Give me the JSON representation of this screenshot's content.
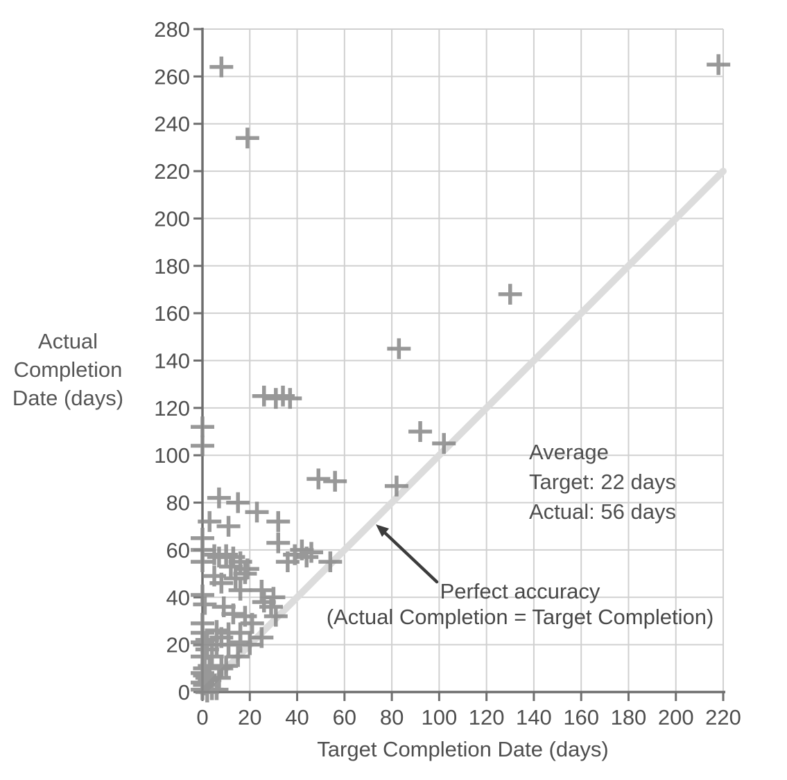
{
  "chart_data": {
    "type": "scatter",
    "title": "",
    "xlabel": "Target Completion Date (days)",
    "ylabel_lines": [
      "Actual",
      "Completion",
      "Date (days)"
    ],
    "xlim": [
      0,
      220
    ],
    "ylim": [
      0,
      280
    ],
    "xticks": [
      0,
      20,
      40,
      60,
      80,
      100,
      120,
      140,
      160,
      180,
      200,
      220
    ],
    "yticks": [
      0,
      20,
      40,
      60,
      80,
      100,
      120,
      140,
      160,
      180,
      200,
      220,
      240,
      260,
      280
    ],
    "grid": true,
    "marker": "plus",
    "legend": "none",
    "points": [
      [
        8,
        264
      ],
      [
        19,
        234
      ],
      [
        218,
        265
      ],
      [
        130,
        168
      ],
      [
        83,
        145
      ],
      [
        26,
        125
      ],
      [
        31,
        124
      ],
      [
        34,
        125
      ],
      [
        37,
        124
      ],
      [
        0,
        112
      ],
      [
        0,
        104
      ],
      [
        92,
        110
      ],
      [
        102,
        105
      ],
      [
        49,
        90
      ],
      [
        56,
        89
      ],
      [
        82,
        87
      ],
      [
        7,
        82
      ],
      [
        15,
        80
      ],
      [
        23,
        76
      ],
      [
        3,
        72
      ],
      [
        32,
        72
      ],
      [
        11,
        70
      ],
      [
        0,
        65
      ],
      [
        32,
        63
      ],
      [
        0,
        60
      ],
      [
        0,
        55
      ],
      [
        5,
        58
      ],
      [
        7,
        57
      ],
      [
        10,
        58
      ],
      [
        13,
        57
      ],
      [
        12,
        53
      ],
      [
        16,
        55
      ],
      [
        19,
        52
      ],
      [
        5,
        49
      ],
      [
        8,
        46
      ],
      [
        14,
        48
      ],
      [
        18,
        50
      ],
      [
        36,
        55
      ],
      [
        39,
        58
      ],
      [
        42,
        60
      ],
      [
        44,
        57
      ],
      [
        46,
        59
      ],
      [
        54,
        55
      ],
      [
        16,
        43
      ],
      [
        25,
        43
      ],
      [
        0,
        41
      ],
      [
        1,
        37
      ],
      [
        9,
        36
      ],
      [
        13,
        33
      ],
      [
        18,
        32
      ],
      [
        21,
        29
      ],
      [
        26,
        38
      ],
      [
        29,
        36
      ],
      [
        30,
        40
      ],
      [
        31,
        32
      ],
      [
        0,
        29
      ],
      [
        0,
        25
      ],
      [
        0,
        21
      ],
      [
        6,
        26
      ],
      [
        11,
        25
      ],
      [
        16,
        25
      ],
      [
        25,
        23
      ],
      [
        2,
        22
      ],
      [
        8,
        23
      ],
      [
        16,
        21
      ],
      [
        1,
        20
      ],
      [
        6,
        20
      ],
      [
        11,
        20
      ],
      [
        20,
        20
      ],
      [
        0,
        15
      ],
      [
        2,
        18
      ],
      [
        4,
        15
      ],
      [
        15,
        15
      ],
      [
        3,
        11
      ],
      [
        8,
        10
      ],
      [
        10,
        11
      ],
      [
        0,
        8
      ],
      [
        1,
        7
      ],
      [
        7,
        6
      ],
      [
        3,
        5
      ],
      [
        0,
        4
      ],
      [
        1,
        3
      ],
      [
        2,
        6
      ],
      [
        4,
        1
      ],
      [
        0,
        1
      ],
      [
        2,
        0
      ],
      [
        1,
        10
      ],
      [
        6,
        1
      ]
    ],
    "reference_line": {
      "from": [
        0,
        0
      ],
      "to": [
        220,
        220
      ],
      "label": "Perfect accuracy",
      "label2": "(Actual Completion = Target Completion)"
    },
    "annotation": {
      "lines": [
        "Average",
        "Target: 22 days",
        "Actual: 56 days"
      ]
    },
    "colors": {
      "marker": "#8a8a8a",
      "grid": "#d0d0d0",
      "axis": "#6e6e6e",
      "text": "#4e4e4e",
      "reference_line": "#dcdcdc",
      "arrow": "#3c3c3c"
    }
  }
}
